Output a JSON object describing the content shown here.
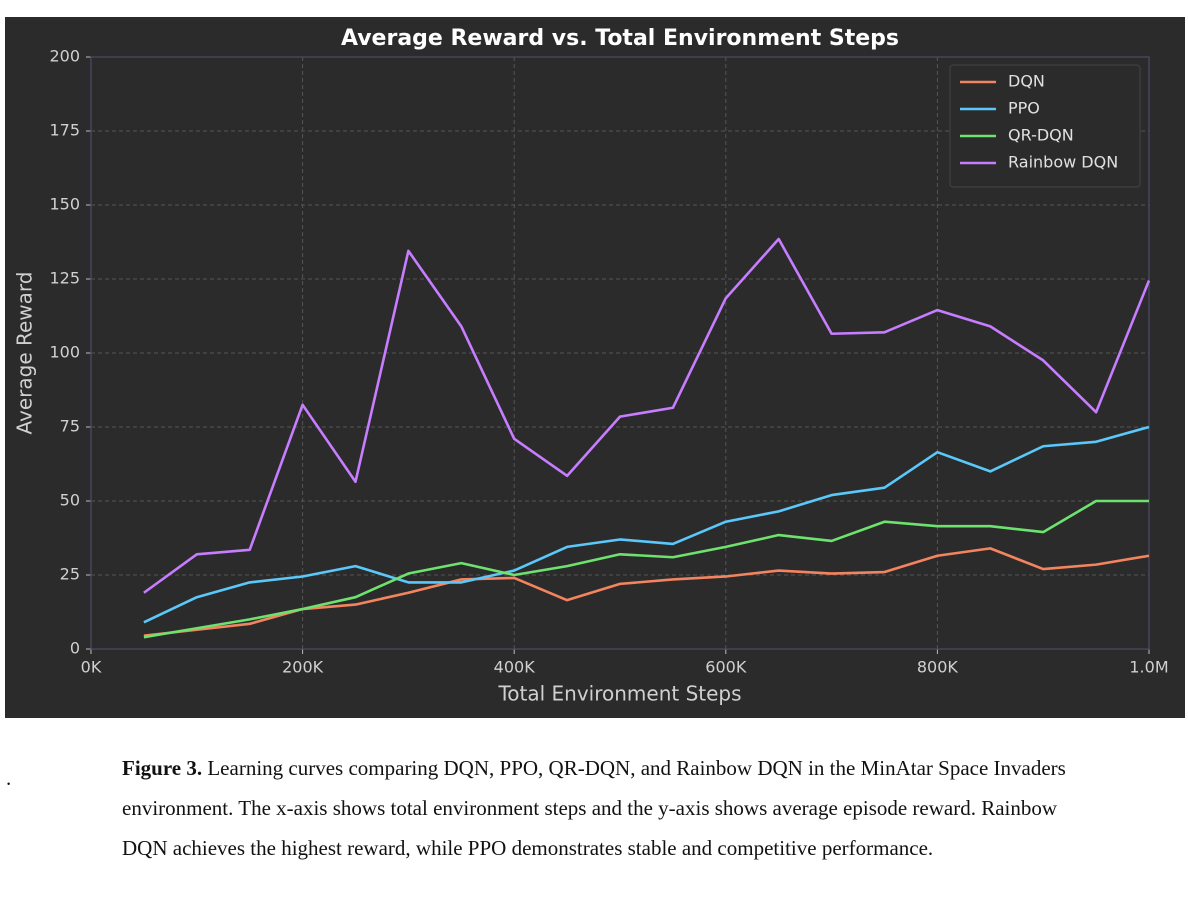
{
  "chart_data": {
    "type": "line",
    "title": "Average Reward vs. Total Environment Steps",
    "x_label": "Total Environment Steps",
    "y_label": "Average Reward",
    "x": [
      50000,
      100000,
      150000,
      200000,
      250000,
      300000,
      350000,
      400000,
      450000,
      500000,
      550000,
      600000,
      650000,
      700000,
      750000,
      800000,
      850000,
      900000,
      950000,
      1000000
    ],
    "series": [
      {
        "name": "DQN",
        "color": "#f4845f",
        "values": [
          4.5,
          6.5,
          8.5,
          13.5,
          15,
          19,
          23.5,
          24,
          16.5,
          22,
          23.5,
          24.5,
          26.5,
          25.5,
          26,
          31.5,
          34,
          27,
          28.5,
          31.5
        ]
      },
      {
        "name": "PPO",
        "color": "#5ac8fa",
        "values": [
          9,
          17.5,
          22.5,
          24.5,
          28,
          22.5,
          22.5,
          26.5,
          34.5,
          37,
          35.5,
          43,
          46.5,
          52,
          54.5,
          66.5,
          60,
          68.5,
          70,
          75
        ]
      },
      {
        "name": "QR-DQN",
        "color": "#6ee26e",
        "values": [
          4,
          7,
          10,
          13.5,
          17.5,
          25.5,
          29,
          25,
          28,
          32,
          31,
          34.5,
          38.5,
          36.5,
          43,
          41.5,
          41.5,
          39.5,
          50,
          50
        ]
      },
      {
        "name": "Rainbow DQN",
        "color": "#c77dff",
        "values": [
          19,
          32,
          33.5,
          82.5,
          56.5,
          134.5,
          109,
          71,
          58.5,
          78.5,
          81.5,
          118.5,
          138.5,
          106.5,
          107,
          114.5,
          109,
          97.5,
          80,
          124.5
        ]
      }
    ],
    "xlim": [
      0,
      1000000
    ],
    "xticks": [
      {
        "value": 0,
        "label": "0K"
      },
      {
        "value": 200000,
        "label": "200K"
      },
      {
        "value": 400000,
        "label": "400K"
      },
      {
        "value": 600000,
        "label": "600K"
      },
      {
        "value": 800000,
        "label": "800K"
      },
      {
        "value": 1000000,
        "label": "1.0M"
      }
    ],
    "ylim": [
      0,
      200
    ],
    "yticks": [
      0,
      25,
      50,
      75,
      100,
      125,
      150,
      175,
      200
    ],
    "grid": true,
    "legend": "upper right"
  },
  "margin_text": ".",
  "caption": {
    "label": "Figure 3.",
    "text": "Learning curves comparing DQN, PPO, QR-DQN, and Rainbow DQN in the MinAtar Space Invaders environment. The x-axis shows total environment steps and the y-axis shows average episode reward. Rainbow DQN achieves the highest reward, while PPO demonstrates stable and competitive performance."
  }
}
